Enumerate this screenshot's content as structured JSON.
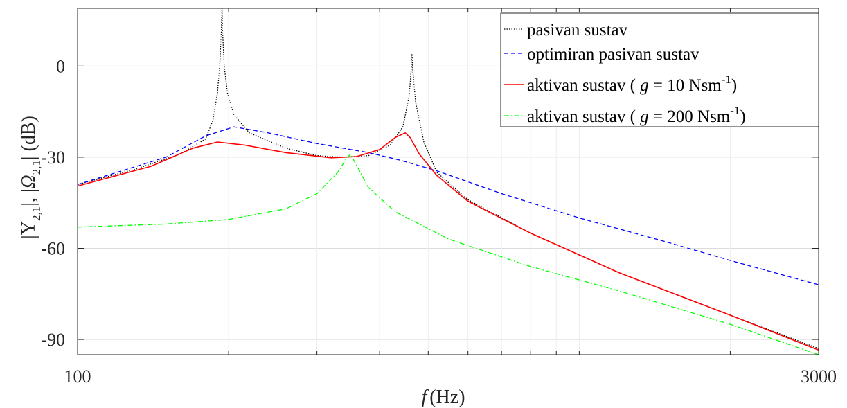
{
  "chart_data": {
    "type": "line",
    "xscale": "log",
    "xlim": [
      100,
      3000
    ],
    "ylim": [
      -95,
      19
    ],
    "x_ticks": [
      100,
      3000
    ],
    "x_tick_labels": [
      "100",
      "3000"
    ],
    "y_ticks": [
      0,
      -30,
      -60,
      -90
    ],
    "y_tick_labels": [
      "0",
      "-30",
      "-60",
      "-90"
    ],
    "xlabel_italic": "f",
    "xlabel_unit": "(Hz)",
    "ylabel_units": "(dB)",
    "grid": true,
    "legend_position": "top-right",
    "series": [
      {
        "name": "pasivan sustav",
        "color": "#000000",
        "style": "dotted",
        "points": [
          [
            100,
            -39
          ],
          [
            130,
            -34
          ],
          [
            160,
            -29
          ],
          [
            180,
            -24
          ],
          [
            186,
            -18
          ],
          [
            190,
            -9
          ],
          [
            192,
            0
          ],
          [
            193.5,
            12
          ],
          [
            194,
            19
          ],
          [
            194.5,
            12
          ],
          [
            196,
            0
          ],
          [
            199,
            -9
          ],
          [
            205,
            -16
          ],
          [
            220,
            -22
          ],
          [
            260,
            -27
          ],
          [
            300,
            -29.5
          ],
          [
            340,
            -30
          ],
          [
            380,
            -29.5
          ],
          [
            420,
            -26
          ],
          [
            445,
            -20
          ],
          [
            458,
            -10
          ],
          [
            462,
            -2
          ],
          [
            464,
            4
          ],
          [
            466,
            -2
          ],
          [
            472,
            -12
          ],
          [
            490,
            -25
          ],
          [
            520,
            -35
          ],
          [
            600,
            -44
          ],
          [
            800,
            -55
          ],
          [
            1200,
            -68
          ],
          [
            2000,
            -82
          ],
          [
            3000,
            -93
          ]
        ]
      },
      {
        "name": "optimiran pasivan sustav",
        "color": "#0000ff",
        "style": "dashed",
        "points": [
          [
            100,
            -39
          ],
          [
            150,
            -30
          ],
          [
            180,
            -23
          ],
          [
            205,
            -20
          ],
          [
            240,
            -22
          ],
          [
            300,
            -25.5
          ],
          [
            380,
            -28.5
          ],
          [
            440,
            -31
          ],
          [
            520,
            -34.5
          ],
          [
            700,
            -42
          ],
          [
            1000,
            -50
          ],
          [
            1500,
            -58
          ],
          [
            2000,
            -64
          ],
          [
            3000,
            -72
          ]
        ]
      },
      {
        "name": "aktivan sustav",
        "g": "10",
        "color": "#ff0000",
        "style": "solid",
        "points": [
          [
            100,
            -39.5
          ],
          [
            140,
            -33
          ],
          [
            170,
            -27
          ],
          [
            190,
            -25
          ],
          [
            215,
            -26
          ],
          [
            260,
            -28.5
          ],
          [
            320,
            -30.2
          ],
          [
            360,
            -29.8
          ],
          [
            400,
            -27.5
          ],
          [
            430,
            -23.5
          ],
          [
            450,
            -22
          ],
          [
            460,
            -23.5
          ],
          [
            480,
            -29
          ],
          [
            520,
            -36
          ],
          [
            600,
            -44.5
          ],
          [
            800,
            -55
          ],
          [
            1200,
            -68
          ],
          [
            2000,
            -82
          ],
          [
            3000,
            -93.5
          ]
        ]
      },
      {
        "name": "aktivan sustav",
        "g": "200",
        "color": "#00ff00",
        "style": "dashdot",
        "points": [
          [
            100,
            -53
          ],
          [
            150,
            -52
          ],
          [
            200,
            -50.5
          ],
          [
            260,
            -47
          ],
          [
            300,
            -42
          ],
          [
            330,
            -35
          ],
          [
            345,
            -30
          ],
          [
            350,
            -29
          ],
          [
            358,
            -32
          ],
          [
            380,
            -40
          ],
          [
            430,
            -48
          ],
          [
            550,
            -57
          ],
          [
            800,
            -66
          ],
          [
            1200,
            -74
          ],
          [
            2000,
            -85
          ],
          [
            3000,
            -95
          ]
        ]
      }
    ],
    "legend": [
      {
        "label": "pasivan sustav",
        "g": "",
        "exp": ""
      },
      {
        "label": "optimiran pasivan sustav",
        "g": "",
        "exp": ""
      },
      {
        "label": "aktivan sustav ( ",
        "g": "g",
        "eq": " = 10 Nsm",
        "exp": "-1",
        "close": ")"
      },
      {
        "label": "aktivan sustav ( ",
        "g": "g",
        "eq": " = 200 Nsm",
        "exp": "-1",
        "close": ")"
      }
    ]
  }
}
